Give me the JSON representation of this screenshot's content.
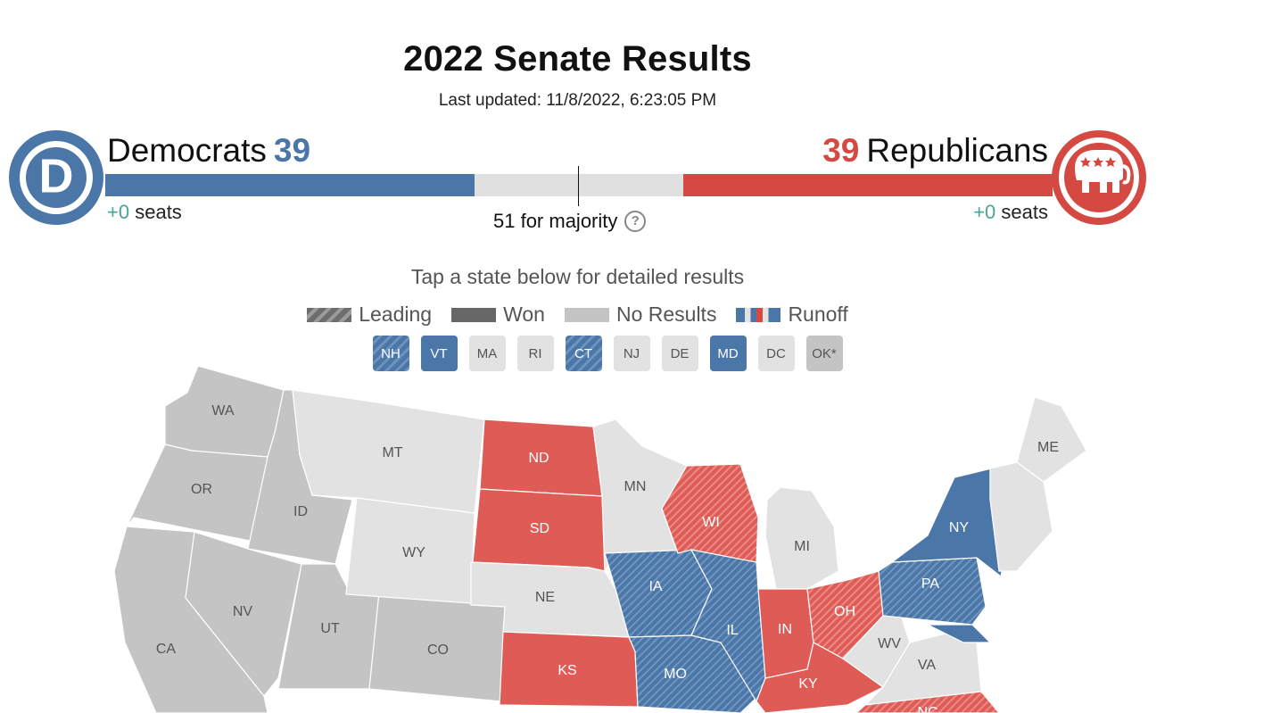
{
  "page": {
    "title": "2022 Senate Results",
    "last_updated": "Last updated: 11/8/2022, 6:23:05 PM",
    "instructions": "Tap a state below for detailed results"
  },
  "dem": {
    "name": "Democrats",
    "count": "39",
    "seat_delta": "+0",
    "seats_word": "seats",
    "logo_letter": "D",
    "bar_fraction": 0.39,
    "color": "#4a76a8"
  },
  "rep": {
    "name": "Republicans",
    "count": "39",
    "seat_delta": "+0",
    "seats_word": "seats",
    "logo_icon": "elephant-icon",
    "bar_fraction": 0.39,
    "color": "#d44a43"
  },
  "majority": {
    "label": "51 for majority",
    "help_icon": "question-icon"
  },
  "legend": [
    {
      "label": "Leading",
      "key": "leading"
    },
    {
      "label": "Won",
      "key": "won"
    },
    {
      "label": "No Results",
      "key": "none"
    },
    {
      "label": "Runoff",
      "key": "runoff"
    }
  ],
  "small_states": [
    {
      "code": "NH",
      "status": "dem-lead"
    },
    {
      "code": "VT",
      "status": "dem"
    },
    {
      "code": "MA",
      "status": "none"
    },
    {
      "code": "RI",
      "status": "none"
    },
    {
      "code": "CT",
      "status": "dem-lead"
    },
    {
      "code": "NJ",
      "status": "none"
    },
    {
      "code": "DE",
      "status": "none"
    },
    {
      "code": "MD",
      "status": "dem"
    },
    {
      "code": "DC",
      "status": "none"
    },
    {
      "code": "OK*",
      "status": "gray"
    }
  ],
  "colors": {
    "dem_won": "#4a76a8",
    "rep_won": "#df5c56",
    "no_race": "#e2e2e2",
    "no_results": "#c4c4c4",
    "label_light": "#ffffff",
    "label_dark": "#555555"
  },
  "map_states": [
    {
      "code": "WA",
      "status": "no_results"
    },
    {
      "code": "OR",
      "status": "no_results"
    },
    {
      "code": "CA",
      "status": "no_results"
    },
    {
      "code": "ID",
      "status": "no_results"
    },
    {
      "code": "NV",
      "status": "no_results"
    },
    {
      "code": "UT",
      "status": "no_results"
    },
    {
      "code": "CO",
      "status": "no_results"
    },
    {
      "code": "MT",
      "status": "no_race"
    },
    {
      "code": "WY",
      "status": "no_race"
    },
    {
      "code": "ND",
      "status": "rep_won"
    },
    {
      "code": "SD",
      "status": "rep_won"
    },
    {
      "code": "NE",
      "status": "no_race"
    },
    {
      "code": "KS",
      "status": "rep_won"
    },
    {
      "code": "MN",
      "status": "no_race"
    },
    {
      "code": "IA",
      "status": "dem_lead"
    },
    {
      "code": "MO",
      "status": "dem_lead"
    },
    {
      "code": "WI",
      "status": "rep_lead"
    },
    {
      "code": "IL",
      "status": "dem_lead"
    },
    {
      "code": "MI",
      "status": "no_race"
    },
    {
      "code": "IN",
      "status": "rep_won"
    },
    {
      "code": "OH",
      "status": "rep_lead"
    },
    {
      "code": "KY",
      "status": "rep_won"
    },
    {
      "code": "WV",
      "status": "no_race"
    },
    {
      "code": "VA",
      "status": "no_race"
    },
    {
      "code": "PA",
      "status": "dem_lead"
    },
    {
      "code": "NY",
      "status": "dem_won"
    },
    {
      "code": "ME",
      "status": "no_race"
    },
    {
      "code": "NC",
      "status": "rep_lead"
    }
  ]
}
